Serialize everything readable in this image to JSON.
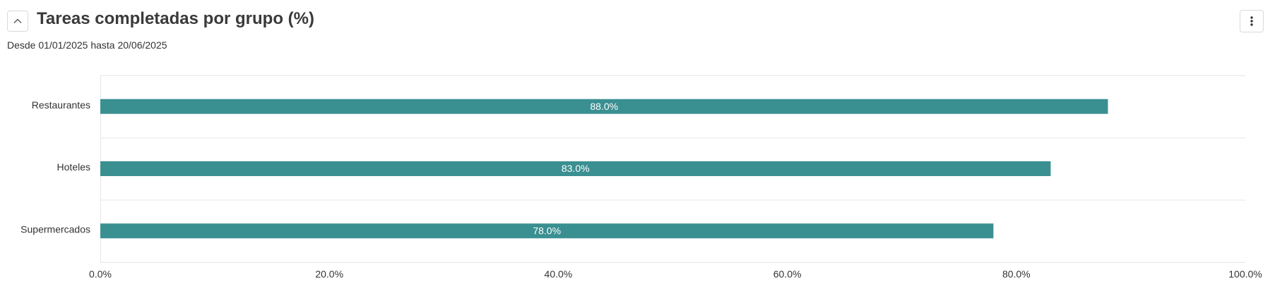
{
  "header": {
    "title": "Tareas completadas por grupo (%)",
    "subtitle": "Desde 01/01/2025 hasta 20/06/2025",
    "collapse_icon": "chevron-up-icon",
    "menu_icon": "kebab-menu-icon"
  },
  "chart_data": {
    "type": "bar",
    "orientation": "horizontal",
    "title": "Tareas completadas por grupo (%)",
    "categories": [
      "Restaurantes",
      "Hoteles",
      "Supermercados"
    ],
    "values": [
      88.0,
      83.0,
      78.0
    ],
    "data_labels": [
      "88.0%",
      "83.0%",
      "78.0%"
    ],
    "xlim": [
      0,
      100
    ],
    "x_ticks": [
      0,
      20,
      40,
      60,
      80,
      100
    ],
    "x_tick_labels": [
      "0.0%",
      "20.0%",
      "40.0%",
      "60.0%",
      "80.0%",
      "100.0%"
    ],
    "grid": true,
    "legend": "none",
    "bar_color": "#3a8f91"
  }
}
